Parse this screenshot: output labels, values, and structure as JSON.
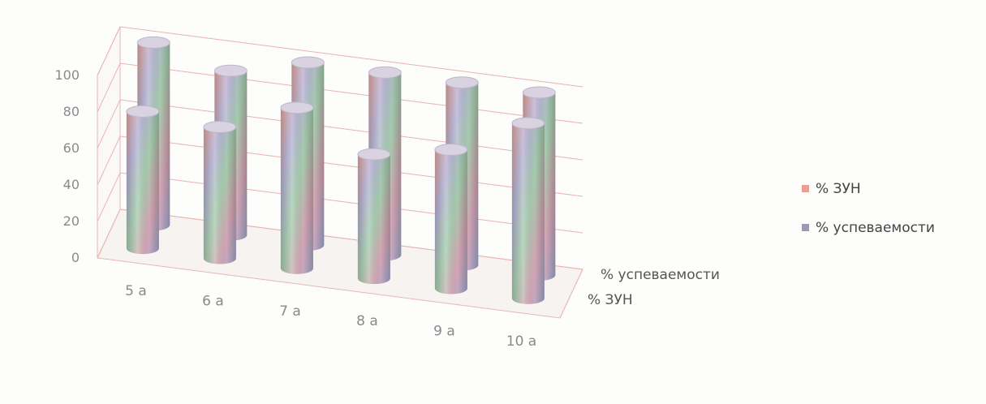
{
  "chart_data": {
    "type": "bar",
    "subtype": "3d-cylinder",
    "title": "",
    "xlabel": "",
    "ylabel": "",
    "ylim": [
      0,
      100
    ],
    "yticks": [
      0,
      20,
      40,
      60,
      80,
      100
    ],
    "categories": [
      "5 а",
      "6 а",
      "7 а",
      "8 а",
      "9 а",
      "10 а"
    ],
    "series": [
      {
        "name": "% ЗУН",
        "values": [
          75,
          72,
          88,
          68,
          76,
          96
        ],
        "color": "#e8a090"
      },
      {
        "name": "% успеваемости",
        "values": [
          100,
          90,
          100,
          100,
          100,
          100
        ],
        "color": "#9a9ab0"
      }
    ],
    "depth_labels": [
      "% успеваемости",
      "% ЗУН"
    ],
    "legend_position": "right",
    "grid": true
  }
}
